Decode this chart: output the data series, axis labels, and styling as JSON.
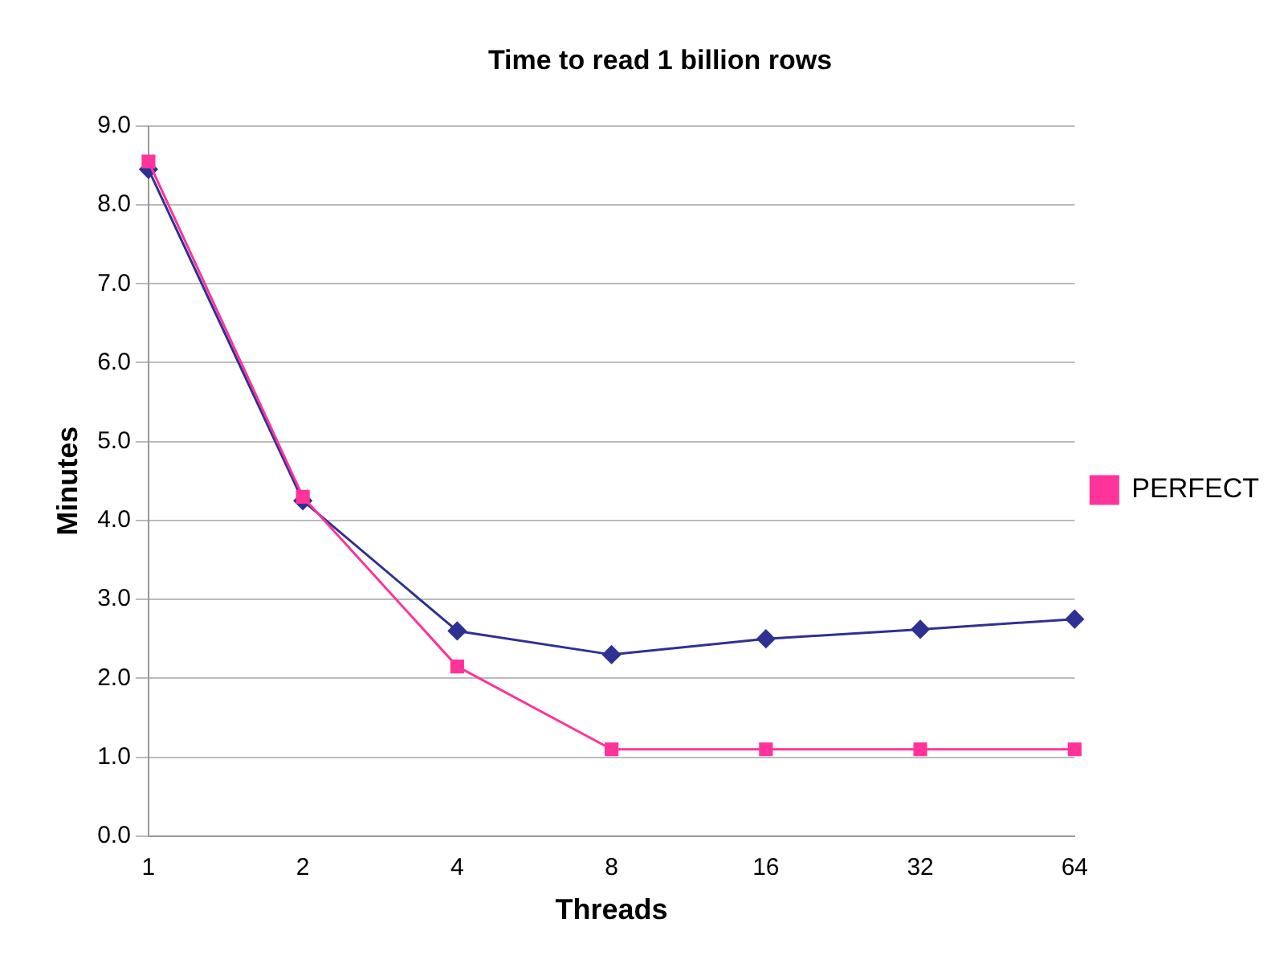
{
  "chart_data": {
    "type": "line",
    "title": "Time to read 1 billion rows",
    "xlabel": "Threads",
    "ylabel": "Minutes",
    "categories": [
      "1",
      "2",
      "4",
      "8",
      "16",
      "32",
      "64"
    ],
    "series": [
      {
        "color": "#2e3192",
        "marker": "diamond",
        "values": [
          8.45,
          4.25,
          2.6,
          2.3,
          2.5,
          2.62,
          2.75
        ]
      },
      {
        "name": "PERFECT",
        "color": "#ff3399",
        "marker": "square",
        "values": [
          8.55,
          4.3,
          2.15,
          1.1,
          1.1,
          1.1,
          1.1
        ]
      }
    ],
    "ylim": [
      0,
      9
    ],
    "yticks": [
      {
        "value": 0,
        "label": "0.0"
      },
      {
        "value": 1,
        "label": "1.0"
      },
      {
        "value": 2,
        "label": "2.0"
      },
      {
        "value": 3,
        "label": "3.0"
      },
      {
        "value": 4,
        "label": "4.0"
      },
      {
        "value": 5,
        "label": "5.0"
      },
      {
        "value": 6,
        "label": "6.0"
      },
      {
        "value": 7,
        "label": "7.0"
      },
      {
        "value": 8,
        "label": "8.0"
      },
      {
        "value": 9,
        "label": "9.0"
      }
    ],
    "grid": "y",
    "legend": "right"
  }
}
